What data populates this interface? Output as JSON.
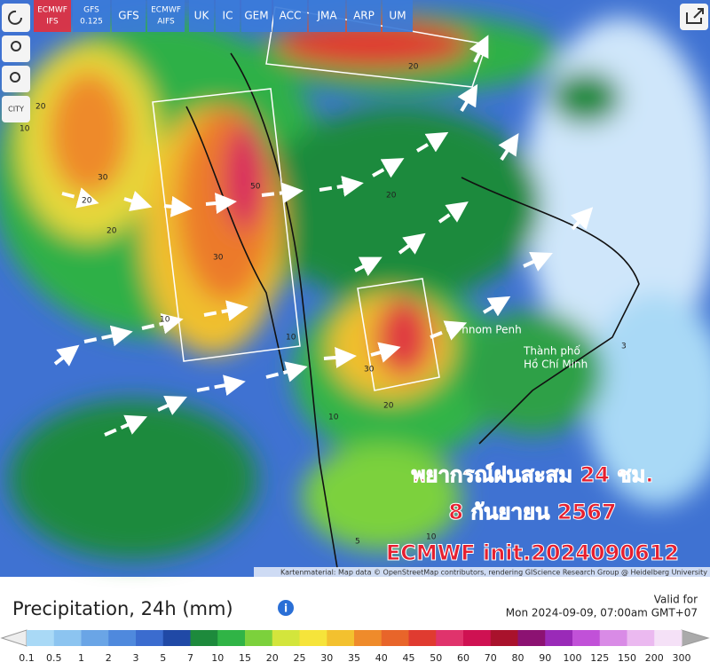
{
  "toolbar": {
    "models": [
      [
        "ECMWF",
        "IFS"
      ],
      [
        "GFS",
        "0.125"
      ],
      [
        "GFS"
      ],
      [
        "ECMWF",
        "AIFS"
      ],
      [
        "UK"
      ],
      [
        "IC"
      ],
      [
        "GEM"
      ],
      [
        "ACC"
      ],
      [
        "JMA"
      ],
      [
        "ARP"
      ],
      [
        "UM"
      ]
    ],
    "city_button": "CITY"
  },
  "map": {
    "places": [
      "Phnom Penh",
      [
        "Thành phố",
        "Hồ Chí Minh"
      ]
    ],
    "overlay": [
      "พยากรณ์ฝนสะสม 24 ชม.",
      "8 กันยายน 2567",
      "ECMWF init.2024090612"
    ],
    "contour_labels": [
      "20",
      "30",
      "10",
      "20",
      "50",
      "30",
      "20",
      "10",
      "30",
      "20",
      "10",
      "20",
      "10",
      "5",
      "10",
      "20",
      "3"
    ],
    "attribution": "Kartenmaterial: Map data © OpenStreetMap contributors, rendering GIScience Research Group @ Heidelberg University"
  },
  "legend": {
    "title": "Precipitation, 24h (mm)",
    "valid_label": "Valid for",
    "valid_time": "Mon 2024-09-09, 07:00am GMT+07",
    "ticks": [
      "0.1",
      "0.5",
      "1",
      "2",
      "3",
      "5",
      "7",
      "10",
      "15",
      "20",
      "25",
      "30",
      "35",
      "40",
      "45",
      "50",
      "60",
      "70",
      "80",
      "90",
      "100",
      "125",
      "150",
      "200",
      "300"
    ],
    "colors": [
      "#a9d9f6",
      "#8cc4f0",
      "#6aa5e6",
      "#4f89dd",
      "#3b6ccf",
      "#2049a6",
      "#1d8a3c",
      "#30b446",
      "#7cd13c",
      "#d3e53c",
      "#f6e43a",
      "#f3c12f",
      "#ef8b2b",
      "#e8652a",
      "#e03b30",
      "#e0336c",
      "#cf1152",
      "#a9122c",
      "#8c1272",
      "#9a2ab8",
      "#c151d8",
      "#d98be6",
      "#ebb9f0",
      "#f5e1f7"
    ]
  }
}
